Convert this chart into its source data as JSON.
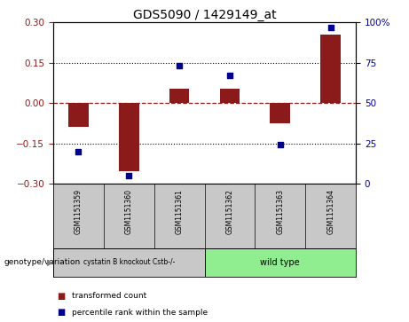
{
  "title": "GDS5090 / 1429149_at",
  "samples": [
    "GSM1151359",
    "GSM1151360",
    "GSM1151361",
    "GSM1151362",
    "GSM1151363",
    "GSM1151364"
  ],
  "bar_values": [
    -0.09,
    -0.255,
    0.055,
    0.055,
    -0.075,
    0.255
  ],
  "dot_values": [
    20,
    5,
    73,
    67,
    24,
    97
  ],
  "bar_color": "#8B1A1A",
  "dot_color": "#00008B",
  "ylim_left": [
    -0.3,
    0.3
  ],
  "ylim_right": [
    0,
    100
  ],
  "yticks_left": [
    -0.3,
    -0.15,
    0,
    0.15,
    0.3
  ],
  "yticks_right": [
    0,
    25,
    50,
    75,
    100
  ],
  "dotted_lines": [
    -0.15,
    0.15
  ],
  "group_colors": [
    "#c8c8c8",
    "#90EE90"
  ],
  "group_labels": [
    "cystatin B knockout Cstb-/-",
    "wild type"
  ],
  "genotype_label": "genotype/variation",
  "legend_bar_label": "transformed count",
  "legend_dot_label": "percentile rank within the sample",
  "background_color": "#ffffff",
  "plot_bg_color": "#ffffff",
  "axis_color_left": "#8B1A1A",
  "axis_color_right": "#00008B",
  "sample_bg_color": "#c8c8c8"
}
